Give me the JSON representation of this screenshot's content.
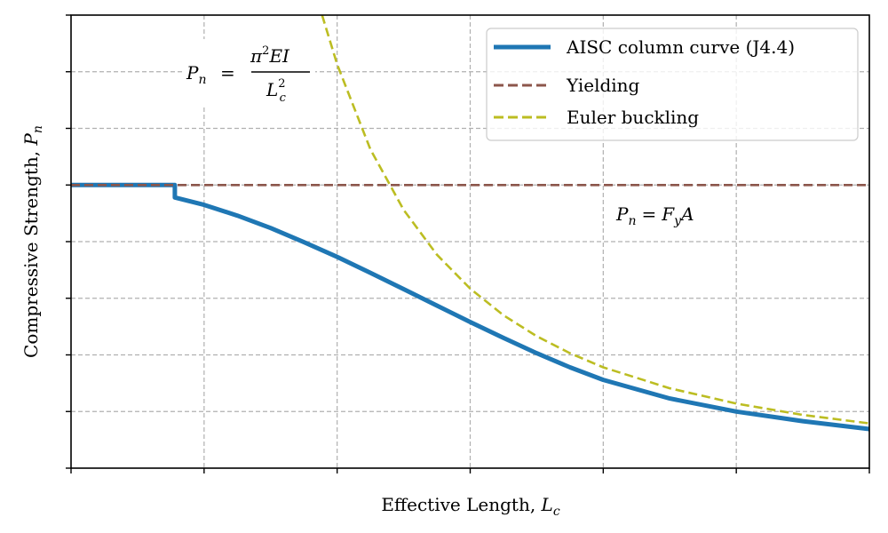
{
  "chart_data": {
    "type": "line",
    "title": "",
    "xlabel": "Effective Length, L_c",
    "xlabel_parts": {
      "text": "Effective Length, ",
      "var": "L",
      "sub": "c"
    },
    "ylabel": "Compressive Strength, P_n",
    "ylabel_parts": {
      "text": "Compressive Strength, ",
      "var": "P",
      "sub": "n"
    },
    "xlim": [
      0,
      6
    ],
    "ylim": [
      0,
      8
    ],
    "x_ticks": [
      0,
      1,
      2,
      3,
      4,
      5,
      6
    ],
    "y_ticks": [
      0,
      1,
      2,
      3,
      4,
      5,
      6,
      7,
      8
    ],
    "tick_labels_shown": false,
    "grid": true,
    "legend_position": "top-right",
    "series": [
      {
        "name": "AISC column curve (J4.4)",
        "color": "#1f77b4",
        "style": "solid",
        "x": [
          0,
          0.78,
          0.78,
          1.0,
          1.25,
          1.5,
          1.75,
          2.0,
          2.25,
          2.5,
          2.75,
          3.0,
          3.25,
          3.5,
          3.58,
          3.75,
          4.0,
          4.5,
          5.0,
          5.5,
          6.0
        ],
        "y": [
          5,
          5,
          4.78,
          4.65,
          4.46,
          4.24,
          3.99,
          3.73,
          3.45,
          3.16,
          2.87,
          2.58,
          2.3,
          2.03,
          1.95,
          1.78,
          1.56,
          1.23,
          1.0,
          0.83,
          0.69
        ]
      },
      {
        "name": "Yielding",
        "color": "#8c564b",
        "style": "dashed",
        "x": [
          0,
          6
        ],
        "y": [
          5,
          5
        ]
      },
      {
        "name": "Euler buckling",
        "color": "#bcbd22",
        "style": "dashed",
        "x": [
          1.887,
          2.0,
          2.25,
          2.5,
          2.75,
          3.0,
          3.25,
          3.5,
          3.75,
          4.0,
          4.5,
          5.0,
          5.5,
          6.0
        ],
        "y": [
          8.0,
          7.13,
          5.63,
          4.56,
          3.77,
          3.17,
          2.7,
          2.33,
          2.03,
          1.78,
          1.41,
          1.14,
          0.94,
          0.79
        ]
      }
    ],
    "annotations": [
      {
        "name": "euler-formula",
        "lhs_var": "P",
        "lhs_sub": "n",
        "eq": "=",
        "num_pi": "π",
        "num_sup": "2",
        "num_rest": "EI",
        "den_var": "L",
        "den_sup": "2",
        "den_sub": "c",
        "at": [
          1.3,
          7.0
        ]
      },
      {
        "name": "yield-formula",
        "lhs_var": "P",
        "lhs_sub": "n",
        "eq": "=",
        "rhs_var": "F",
        "rhs_sub": "y",
        "rhs_rest": "A",
        "at": [
          4.5,
          4.5
        ]
      }
    ]
  }
}
